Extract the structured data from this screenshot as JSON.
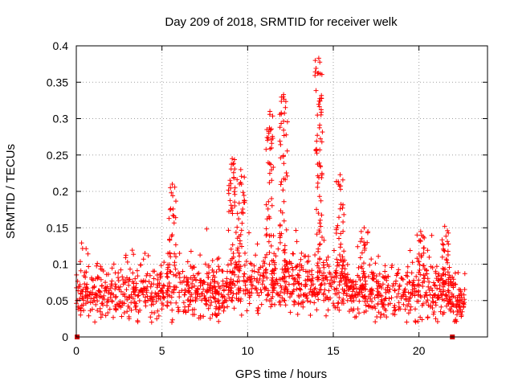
{
  "chart_data": {
    "type": "scatter",
    "title": "Day 209 of 2018, SRMTID for receiver welk",
    "xlabel": "GPS time / hours",
    "ylabel": "SRMTID / TECUs",
    "xlim": [
      0,
      24
    ],
    "ylim": [
      0,
      0.4
    ],
    "xticks": [
      0,
      5,
      10,
      15,
      20
    ],
    "xtick_labels": [
      "0",
      "5",
      "10",
      "15",
      "20"
    ],
    "yticks": [
      0,
      0.05,
      0.1,
      0.15,
      0.2,
      0.25,
      0.3,
      0.35,
      0.4
    ],
    "ytick_labels": [
      "0",
      "0.05",
      "0.1",
      "0.15",
      "0.2",
      "0.25",
      "0.3",
      "0.35",
      "0.4"
    ],
    "grid": true,
    "marker": "plus",
    "color": "#ff0000",
    "zero_markers_x": [
      0.05,
      21.95
    ],
    "data_range_x": [
      0,
      22.7
    ],
    "baseline_mean": 0.06,
    "baseline_spread": 0.025,
    "peaks": [
      {
        "x": 5.6,
        "y": 0.21
      },
      {
        "x": 9.1,
        "y": 0.245
      },
      {
        "x": 9.6,
        "y": 0.23
      },
      {
        "x": 11.3,
        "y": 0.31
      },
      {
        "x": 12.1,
        "y": 0.333
      },
      {
        "x": 14.15,
        "y": 0.383
      },
      {
        "x": 15.4,
        "y": 0.223
      },
      {
        "x": 16.8,
        "y": 0.15
      },
      {
        "x": 20.1,
        "y": 0.145
      },
      {
        "x": 21.5,
        "y": 0.152
      }
    ]
  }
}
